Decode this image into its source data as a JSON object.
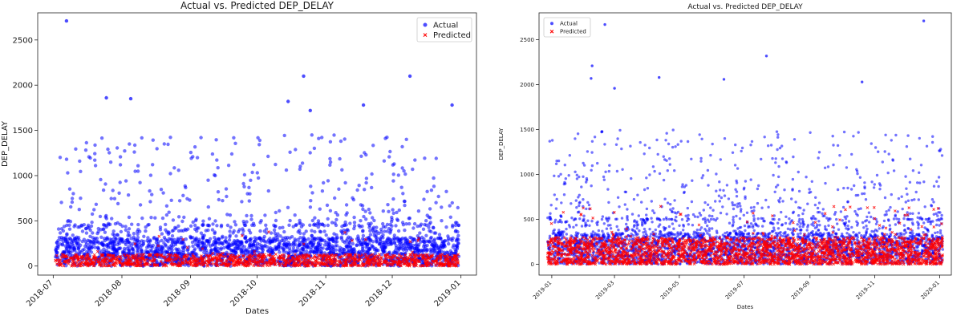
{
  "chart_data": [
    {
      "type": "scatter",
      "title": "Actual vs. Predicted DEP_DELAY",
      "xlabel": "Dates",
      "ylabel": "DEP_DELAY",
      "xlim": [
        "2018-06-24",
        "2019-01-08"
      ],
      "ylim": [
        -100,
        2800
      ],
      "y_ticks": [
        0,
        500,
        1000,
        1500,
        2000,
        2500
      ],
      "x_tick_labels": [
        "2018-07",
        "2018-08",
        "2018-09",
        "2018-10",
        "2018-11",
        "2018-12",
        "2019-01"
      ],
      "legend": "top-right",
      "series": [
        {
          "name": "Actual",
          "color": "#0000ff",
          "marker": "circle",
          "typical_range": [
            0,
            450
          ],
          "dense_max": 450
        },
        {
          "name": "Predicted",
          "color": "#ff0000",
          "marker": "x",
          "typical_range": [
            0,
            130
          ],
          "dense_max": 130
        }
      ],
      "notable_points": [
        {
          "date": "2018-07-07",
          "value": 2710
        },
        {
          "date": "2018-10-22",
          "value": 2100
        },
        {
          "date": "2018-12-09",
          "value": 2100
        },
        {
          "date": "2018-07-25",
          "value": 1860
        },
        {
          "date": "2018-08-05",
          "value": 1850
        },
        {
          "date": "2018-10-15",
          "value": 1820
        },
        {
          "date": "2018-11-18",
          "value": 1780
        },
        {
          "date": "2018-12-28",
          "value": 1780
        },
        {
          "date": "2018-10-25",
          "value": 1720
        }
      ]
    },
    {
      "type": "scatter",
      "title": "Actual vs. Predicted DEP_DELAY",
      "xlabel": "Dates",
      "ylabel": "DEP_DELAY",
      "xlim": [
        "2018-12-20",
        "2020-01-12"
      ],
      "ylim": [
        -120,
        2800
      ],
      "y_ticks": [
        0,
        500,
        1000,
        1500,
        2000,
        2500
      ],
      "x_tick_labels": [
        "2019-01",
        "2019-03",
        "2019-05",
        "2019-07",
        "2019-09",
        "2019-11",
        "2020-01"
      ],
      "legend": "top-left",
      "series": [
        {
          "name": "Actual",
          "color": "#0000ff",
          "marker": "circle",
          "typical_range": [
            0,
            500
          ],
          "dense_max": 500
        },
        {
          "name": "Predicted",
          "color": "#ff0000",
          "marker": "x",
          "typical_range": [
            0,
            300
          ],
          "dense_max": 300
        }
      ],
      "notable_points": [
        {
          "date": "2019-12-17",
          "value": 2710
        },
        {
          "date": "2019-02-20",
          "value": 2670
        },
        {
          "date": "2019-07-22",
          "value": 2320
        },
        {
          "date": "2019-02-08",
          "value": 2210
        },
        {
          "date": "2019-04-12",
          "value": 2080
        },
        {
          "date": "2019-02-07",
          "value": 2070
        },
        {
          "date": "2019-06-12",
          "value": 2060
        },
        {
          "date": "2019-10-20",
          "value": 2030
        },
        {
          "date": "2019-03-01",
          "value": 1960
        }
      ]
    }
  ]
}
